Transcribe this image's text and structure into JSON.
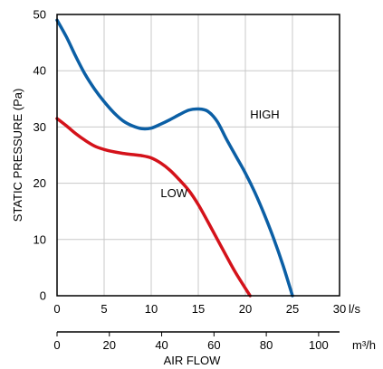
{
  "chart_data": {
    "type": "line",
    "ylabel": "STATIC PRESSURE (Pa)",
    "xlabel": "AIR FLOW",
    "x_unit": "l/s",
    "x2_unit": "m³/h",
    "xlim": [
      0,
      30
    ],
    "ylim": [
      0,
      50
    ],
    "x2lim": [
      0,
      108
    ],
    "x_ticks": [
      0,
      5,
      10,
      15,
      20,
      25,
      30
    ],
    "y_ticks": [
      0,
      10,
      20,
      30,
      40,
      50
    ],
    "x2_ticks": [
      0,
      20,
      40,
      60,
      80,
      100
    ],
    "grid": true,
    "series": [
      {
        "name": "HIGH",
        "color": "#0b5fa5",
        "label_at": [
          20.5,
          31.5
        ],
        "x": [
          0,
          1,
          2,
          3,
          4,
          5,
          6,
          7,
          8,
          9,
          10,
          11,
          12,
          13,
          14,
          15,
          16,
          17,
          18,
          19,
          20,
          21,
          22,
          23,
          24,
          25
        ],
        "y": [
          49,
          46,
          42.5,
          39.3,
          36.7,
          34.5,
          32.6,
          31.1,
          30.2,
          29.7,
          29.8,
          30.5,
          31.3,
          32.2,
          33,
          33.2,
          32.8,
          31,
          27.8,
          24.8,
          21.8,
          18.4,
          14.5,
          10.2,
          5.4,
          0
        ]
      },
      {
        "name": "LOW",
        "color": "#d4121a",
        "label_at": [
          11,
          17.5
        ],
        "x": [
          0,
          1,
          2,
          3,
          4,
          5,
          6,
          7,
          8,
          9,
          10,
          11,
          12,
          13,
          14,
          15,
          16,
          17,
          18,
          19,
          20.5
        ],
        "y": [
          31.5,
          30.2,
          28.8,
          27.6,
          26.6,
          26,
          25.6,
          25.3,
          25.1,
          24.9,
          24.5,
          23.6,
          22.3,
          20.6,
          18.7,
          16.2,
          13.2,
          10.1,
          7,
          4,
          0
        ]
      }
    ]
  }
}
